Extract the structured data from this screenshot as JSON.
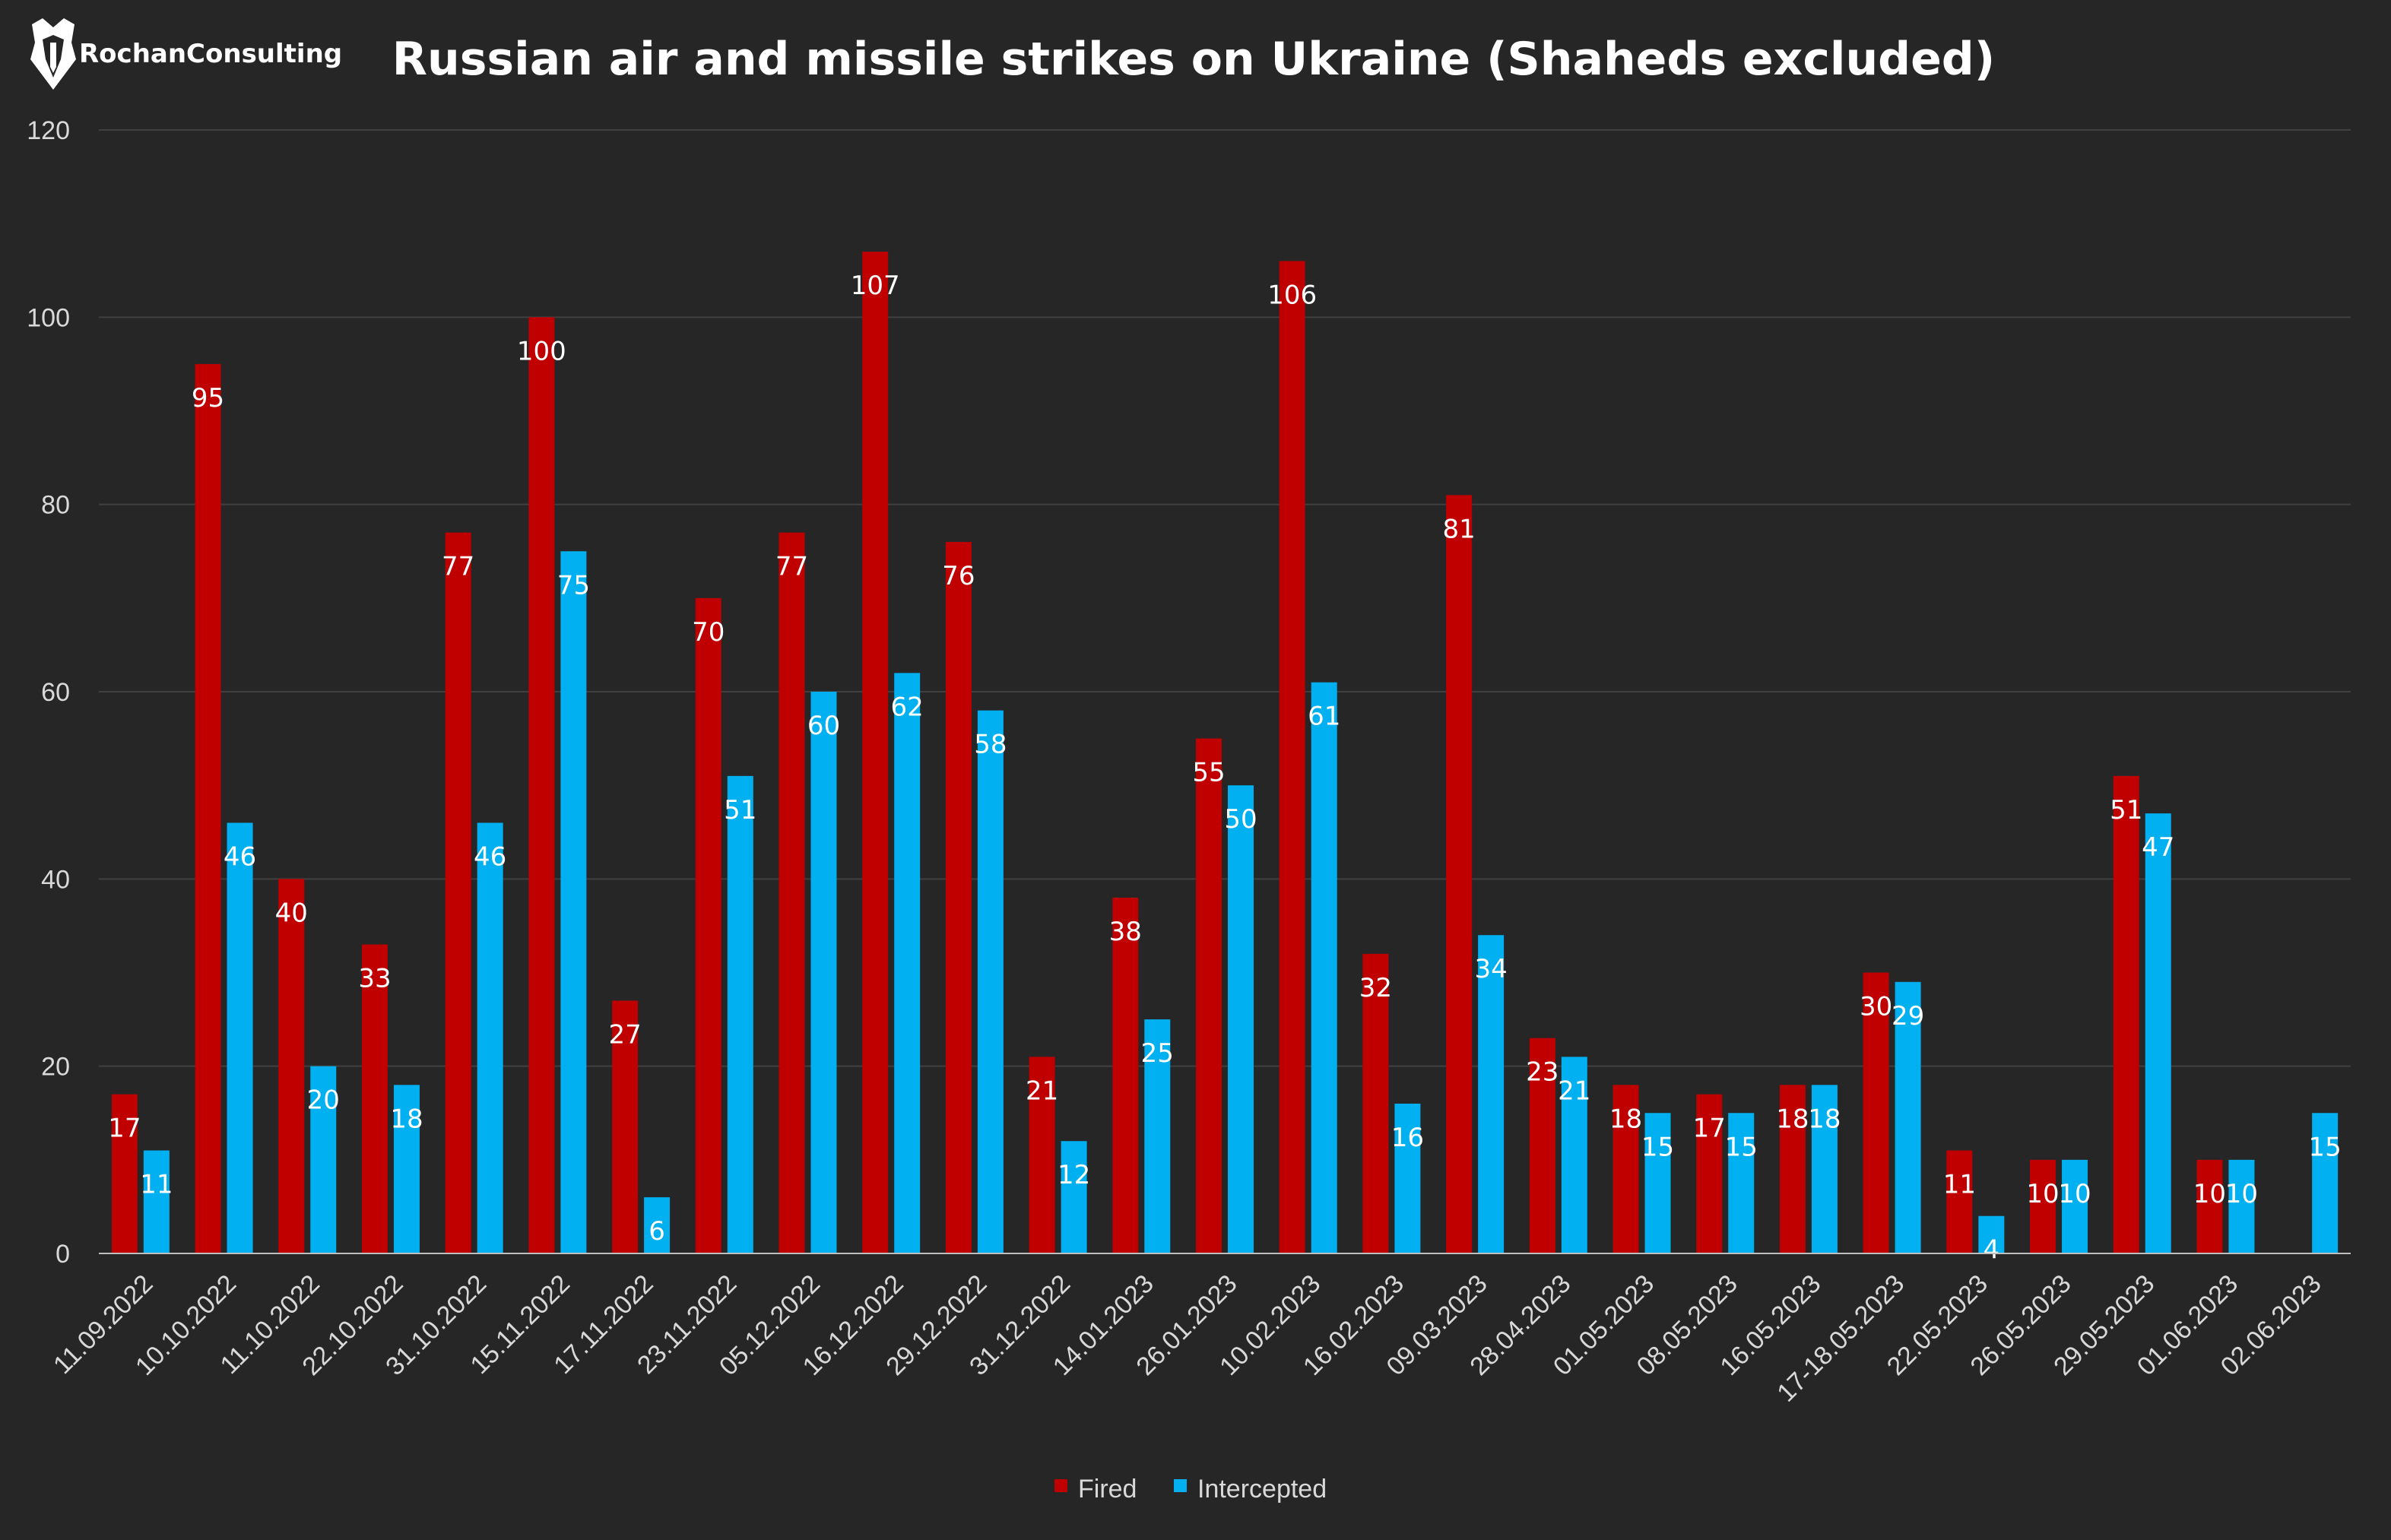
{
  "brand": {
    "name": "RochanConsulting"
  },
  "colors": {
    "background": "#262626",
    "gridline": "#404040",
    "axis_line": "#bfbfbf",
    "text": "#d9d9d9",
    "title": "#ffffff",
    "label": "#ffffff",
    "fired": "#c00000",
    "intercepted": "#00b0f0"
  },
  "chart_data": {
    "type": "bar",
    "title": "Russian air and missile strikes on Ukraine (Shaheds excluded)",
    "xlabel": "",
    "ylabel": "",
    "ylim": [
      0,
      120
    ],
    "yticks": [
      0,
      20,
      40,
      60,
      80,
      100,
      120
    ],
    "grid": true,
    "legend_position": "bottom",
    "data_labels": true,
    "categories": [
      "11.09.2022",
      "10.10.2022",
      "11.10.2022",
      "22.10.2022",
      "31.10.2022",
      "15.11.2022",
      "17.11.2022",
      "23.11.2022",
      "05.12.2022",
      "16.12.2022",
      "29.12.2022",
      "31.12.2022",
      "14.01.2023",
      "26.01.2023",
      "10.02.2023",
      "16.02.2023",
      "09.03.2023",
      "28.04.2023",
      "01.05.2023",
      "08.05.2023",
      "16.05.2023",
      "17-18.05.2023",
      "22.05.2023",
      "26.05.2023",
      "29.05.2023",
      "01.06.2023",
      "02.06.2023"
    ],
    "series": [
      {
        "name": "Fired",
        "color": "#c00000",
        "values": [
          17,
          95,
          40,
          33,
          77,
          100,
          27,
          70,
          77,
          107,
          76,
          21,
          38,
          55,
          106,
          32,
          81,
          23,
          18,
          17,
          18,
          30,
          11,
          10,
          51,
          10,
          null
        ]
      },
      {
        "name": "Intercepted",
        "color": "#00b0f0",
        "values": [
          11,
          46,
          20,
          18,
          46,
          75,
          6,
          51,
          60,
          62,
          58,
          12,
          25,
          50,
          61,
          16,
          34,
          21,
          15,
          15,
          18,
          29,
          4,
          10,
          47,
          10,
          15
        ]
      }
    ]
  }
}
